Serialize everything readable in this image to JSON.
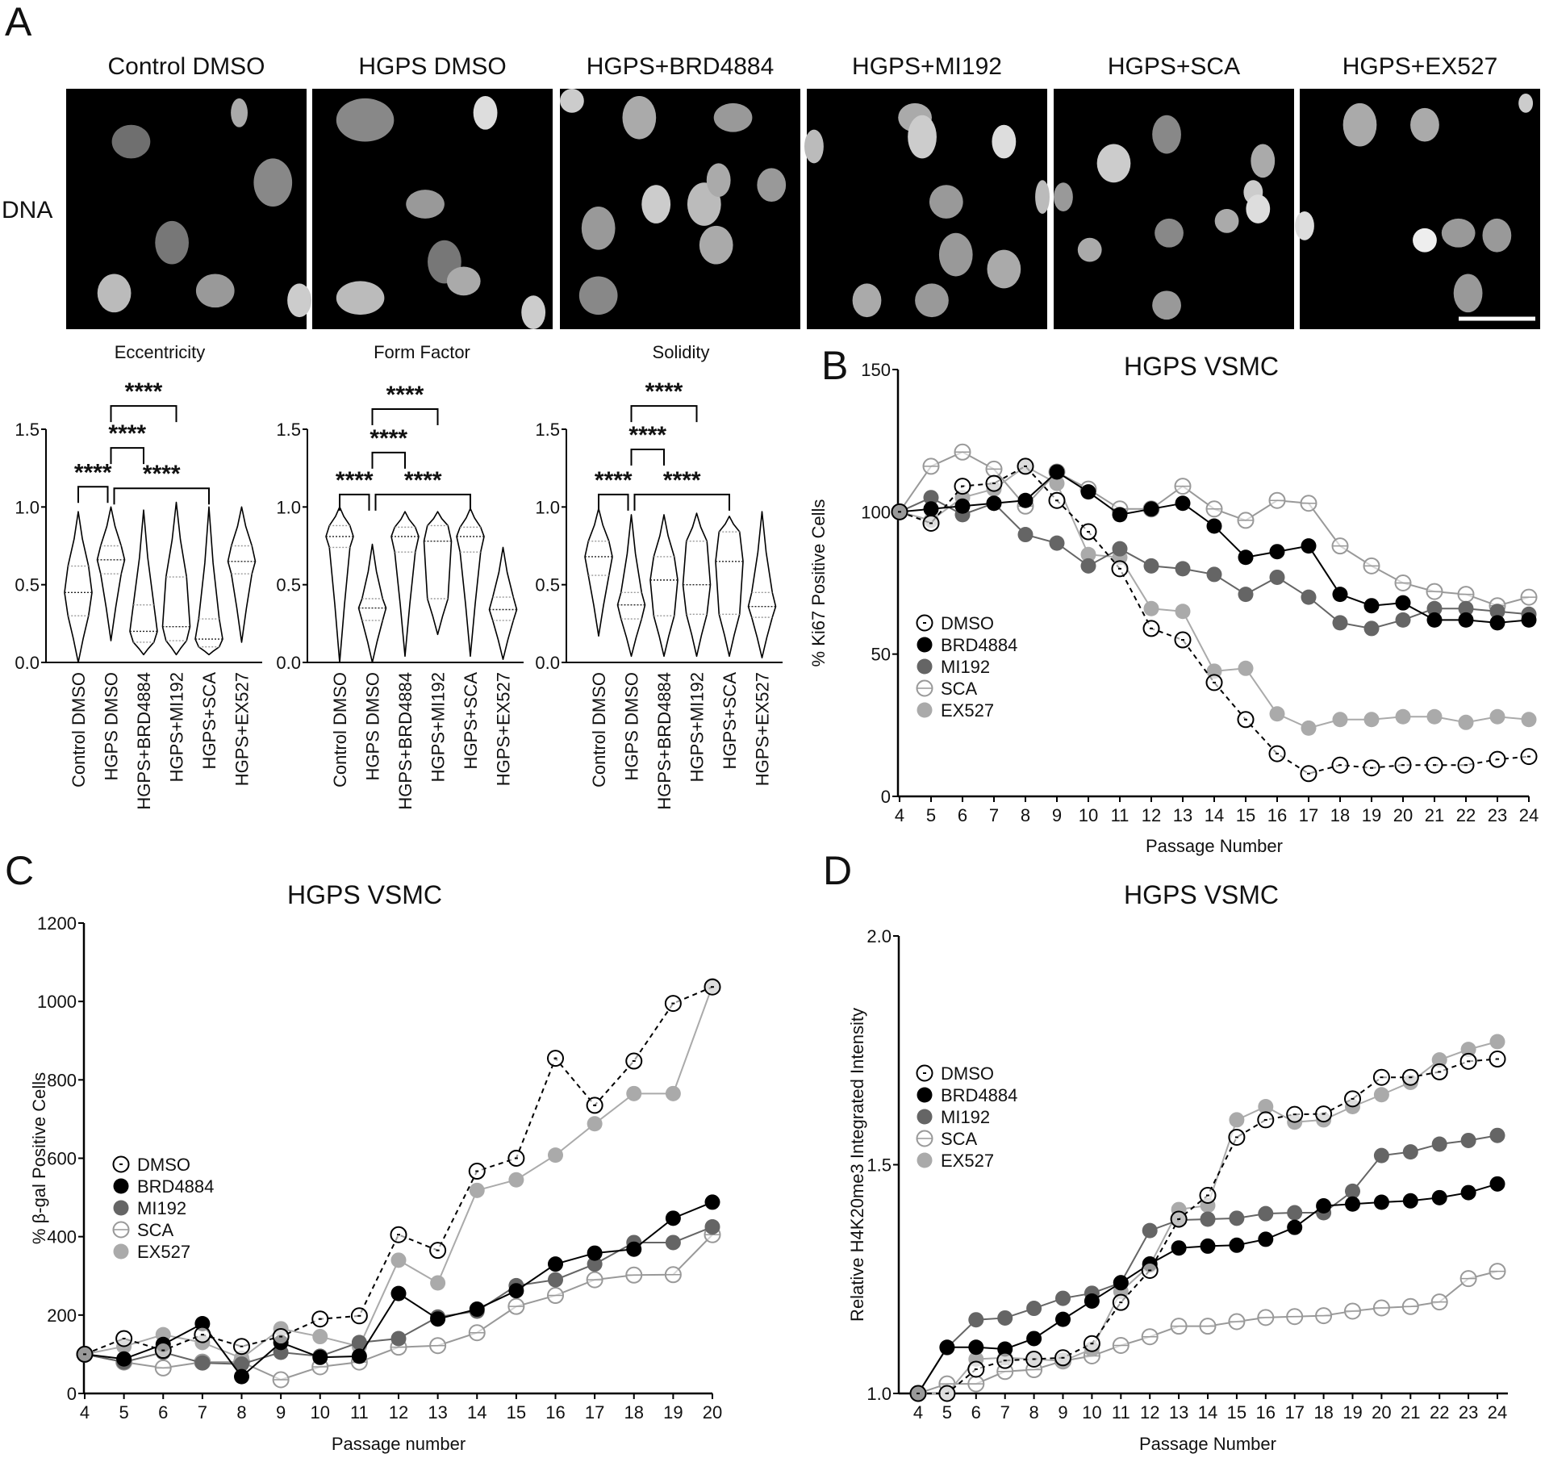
{
  "panel_labels": {
    "a": "A",
    "b": "B",
    "c": "C",
    "d": "D"
  },
  "panel_a": {
    "row_label": "DNA",
    "image_titles": [
      "Control DMSO",
      "HGPS DMSO",
      "HGPS+BRD4884",
      "HGPS+MI192",
      "HGPS+SCA",
      "HGPS+EX527"
    ],
    "scale_bar_color": "#ffffff"
  },
  "chart_data": [
    {
      "type": "violin",
      "title": "Eccentricity",
      "categories": [
        "Control DMSO",
        "HGPS DMSO",
        "HGPS+BRD4884",
        "HGPS+MI192",
        "HGPS+SCA",
        "HGPS+EX527"
      ],
      "ylim": [
        0,
        1.5
      ],
      "yticks": [
        "0.0",
        "0.5",
        "1.0",
        "1.5"
      ],
      "distributions": [
        {
          "median": 0.45,
          "q1": 0.3,
          "q3": 0.62,
          "min": 0.0,
          "max": 0.97
        },
        {
          "median": 0.66,
          "q1": 0.57,
          "q3": 0.75,
          "min": 0.14,
          "max": 1.0
        },
        {
          "median": 0.2,
          "q1": 0.13,
          "q3": 0.37,
          "min": 0.05,
          "max": 0.98
        },
        {
          "median": 0.23,
          "q1": 0.14,
          "q3": 0.55,
          "min": 0.05,
          "max": 1.03
        },
        {
          "median": 0.15,
          "q1": 0.1,
          "q3": 0.28,
          "min": 0.05,
          "max": 1.0
        },
        {
          "median": 0.65,
          "q1": 0.57,
          "q3": 0.75,
          "min": 0.13,
          "max": 1.0
        }
      ],
      "significance": [
        {
          "from": 0,
          "to": 1,
          "label": "****"
        },
        {
          "from": 1,
          "to": 4,
          "label": "****"
        },
        {
          "from": 1,
          "to": 2,
          "label": "****"
        },
        {
          "from": 1,
          "to": 3,
          "label": "****"
        }
      ]
    },
    {
      "type": "violin",
      "title": "Form Factor",
      "categories": [
        "Control DMSO",
        "HGPS DMSO",
        "HGPS+BRD4884",
        "HGPS+MI192",
        "HGPS+SCA",
        "HGPS+EX527"
      ],
      "ylim": [
        0,
        1.5
      ],
      "yticks": [
        "0.0",
        "0.5",
        "1.0",
        "1.5"
      ],
      "distributions": [
        {
          "median": 0.81,
          "q1": 0.74,
          "q3": 0.88,
          "min": 0.0,
          "max": 1.0
        },
        {
          "median": 0.35,
          "q1": 0.27,
          "q3": 0.41,
          "min": 0.0,
          "max": 0.76
        },
        {
          "median": 0.81,
          "q1": 0.71,
          "q3": 0.87,
          "min": 0.04,
          "max": 0.97
        },
        {
          "median": 0.78,
          "q1": 0.41,
          "q3": 0.88,
          "min": 0.18,
          "max": 0.97
        },
        {
          "median": 0.81,
          "q1": 0.71,
          "q3": 0.87,
          "min": 0.04,
          "max": 0.99
        },
        {
          "median": 0.34,
          "q1": 0.27,
          "q3": 0.42,
          "min": 0.02,
          "max": 0.74
        }
      ],
      "significance": [
        {
          "from": 0,
          "to": 1,
          "label": "****"
        },
        {
          "from": 1,
          "to": 4,
          "label": "****"
        },
        {
          "from": 1,
          "to": 2,
          "label": "****"
        },
        {
          "from": 1,
          "to": 3,
          "label": "****"
        }
      ]
    },
    {
      "type": "violin",
      "title": "Solidity",
      "categories": [
        "Control DMSO",
        "HGPS DMSO",
        "HGPS+BRD4884",
        "HGPS+MI192",
        "HGPS+SCA",
        "HGPS+EX527"
      ],
      "ylim": [
        0,
        1.5
      ],
      "yticks": [
        "0.0",
        "0.5",
        "1.0",
        "1.5"
      ],
      "distributions": [
        {
          "median": 0.68,
          "q1": 0.56,
          "q3": 0.78,
          "min": 0.17,
          "max": 0.99
        },
        {
          "median": 0.37,
          "q1": 0.28,
          "q3": 0.45,
          "min": 0.04,
          "max": 0.95
        },
        {
          "median": 0.53,
          "q1": 0.3,
          "q3": 0.68,
          "min": 0.04,
          "max": 0.95
        },
        {
          "median": 0.5,
          "q1": 0.31,
          "q3": 0.78,
          "min": 0.04,
          "max": 0.96
        },
        {
          "median": 0.65,
          "q1": 0.31,
          "q3": 0.84,
          "min": 0.04,
          "max": 0.94
        },
        {
          "median": 0.36,
          "q1": 0.29,
          "q3": 0.45,
          "min": 0.03,
          "max": 0.97
        }
      ],
      "significance": [
        {
          "from": 0,
          "to": 1,
          "label": "****"
        },
        {
          "from": 1,
          "to": 4,
          "label": "****"
        },
        {
          "from": 1,
          "to": 2,
          "label": "****"
        },
        {
          "from": 1,
          "to": 3,
          "label": "****"
        }
      ]
    },
    {
      "type": "line",
      "title": "HGPS VSMC",
      "xlabel": "Passage Number",
      "ylabel": "% Ki67 Positive Cells",
      "x": [
        4,
        5,
        6,
        7,
        8,
        9,
        10,
        11,
        12,
        13,
        14,
        15,
        16,
        17,
        18,
        19,
        20,
        21,
        22,
        23,
        24
      ],
      "ylim": [
        0,
        150
      ],
      "yticks": [
        "0",
        "50",
        "100",
        "150"
      ],
      "legend": "center-left",
      "series": [
        {
          "name": "DMSO",
          "values": [
            100,
            96,
            109,
            110,
            116,
            104,
            93,
            80,
            59,
            55,
            40,
            27,
            15,
            8,
            11,
            10,
            11,
            11,
            11,
            13,
            14
          ]
        },
        {
          "name": "BRD4884",
          "values": [
            100,
            101,
            102,
            103,
            104,
            114,
            107,
            99,
            101,
            103,
            95,
            84,
            86,
            88,
            71,
            67,
            68,
            62,
            62,
            61,
            62
          ]
        },
        {
          "name": "MI192",
          "values": [
            100,
            105,
            99,
            103,
            92,
            89,
            81,
            87,
            81,
            80,
            78,
            71,
            77,
            70,
            61,
            59,
            62,
            66,
            66,
            65,
            64
          ]
        },
        {
          "name": "SCA",
          "values": [
            100,
            116,
            121,
            115,
            102,
            114,
            108,
            101,
            101,
            109,
            101,
            97,
            104,
            103,
            88,
            81,
            75,
            72,
            71,
            67,
            70
          ]
        },
        {
          "name": "EX527",
          "values": [
            100,
            97,
            105,
            108,
            116,
            110,
            85,
            84,
            66,
            65,
            44,
            45,
            29,
            24,
            27,
            27,
            28,
            28,
            26,
            28,
            27
          ]
        }
      ]
    },
    {
      "type": "line",
      "title": "HGPS VSMC",
      "xlabel": "Passage number",
      "ylabel": "% β-gal Positive Cells",
      "x": [
        4,
        5,
        6,
        7,
        8,
        9,
        10,
        11,
        12,
        13,
        14,
        15,
        16,
        17,
        18,
        19,
        20
      ],
      "ylim": [
        0,
        1200
      ],
      "yticks": [
        "0",
        "200",
        "400",
        "600",
        "800",
        "1000",
        "1200"
      ],
      "legend": "center-left",
      "series": [
        {
          "name": "DMSO",
          "values": [
            100,
            140,
            110,
            150,
            120,
            145,
            190,
            198,
            405,
            365,
            567,
            600,
            855,
            735,
            848,
            995,
            1037
          ]
        },
        {
          "name": "BRD4884",
          "values": [
            100,
            88,
            125,
            178,
            43,
            130,
            92,
            95,
            255,
            190,
            215,
            262,
            330,
            358,
            368,
            447,
            488
          ]
        },
        {
          "name": "MI192",
          "values": [
            100,
            80,
            105,
            78,
            75,
            105,
            95,
            130,
            140,
            195,
            210,
            275,
            290,
            330,
            385,
            385,
            425
          ]
        },
        {
          "name": "SCA",
          "values": [
            100,
            80,
            65,
            80,
            80,
            35,
            68,
            80,
            118,
            122,
            155,
            222,
            250,
            290,
            302,
            303,
            405
          ]
        },
        {
          "name": "EX527",
          "values": [
            100,
            120,
            150,
            130,
            90,
            165,
            145,
            120,
            340,
            282,
            518,
            545,
            608,
            688,
            765,
            765,
            1040
          ]
        }
      ]
    },
    {
      "type": "line",
      "title": "HGPS VSMC",
      "xlabel": "Passage Number",
      "ylabel": "Relative H4K20me3 Integrated Intensity",
      "x": [
        4,
        5,
        6,
        7,
        8,
        9,
        10,
        11,
        12,
        13,
        14,
        15,
        16,
        17,
        18,
        19,
        20,
        21,
        22,
        23,
        24
      ],
      "ylim": [
        1.0,
        2.0
      ],
      "yticks": [
        "1.0",
        "1.5",
        "2.0"
      ],
      "legend": "center-left",
      "series": [
        {
          "name": "DMSO",
          "values": [
            1.0,
            1.0,
            1.053,
            1.072,
            1.075,
            1.078,
            1.109,
            1.199,
            1.269,
            1.381,
            1.433,
            1.56,
            1.598,
            1.61,
            1.611,
            1.644,
            1.691,
            1.691,
            1.703,
            1.726,
            1.731
          ]
        },
        {
          "name": "BRD4884",
          "values": [
            1.0,
            1.101,
            1.101,
            1.097,
            1.12,
            1.162,
            1.202,
            1.242,
            1.283,
            1.318,
            1.322,
            1.324,
            1.337,
            1.363,
            1.41,
            1.414,
            1.418,
            1.421,
            1.428,
            1.439,
            1.458
          ]
        },
        {
          "name": "MI192",
          "values": [
            1.0,
            1.1,
            1.161,
            1.165,
            1.186,
            1.208,
            1.219,
            1.242,
            1.356,
            1.379,
            1.381,
            1.383,
            1.393,
            1.395,
            1.395,
            1.442,
            1.52,
            1.528,
            1.545,
            1.553,
            1.564
          ]
        },
        {
          "name": "SCA",
          "values": [
            1.0,
            1.021,
            1.021,
            1.048,
            1.052,
            1.071,
            1.082,
            1.105,
            1.124,
            1.147,
            1.147,
            1.157,
            1.166,
            1.168,
            1.17,
            1.18,
            1.187,
            1.19,
            1.2,
            1.251,
            1.267
          ]
        },
        {
          "name": "EX527",
          "values": [
            1.0,
            1.0,
            1.075,
            1.078,
            1.075,
            1.071,
            1.097,
            1.223,
            1.28,
            1.402,
            1.411,
            1.598,
            1.627,
            1.593,
            1.598,
            1.627,
            1.653,
            1.68,
            1.729,
            1.752,
            1.769
          ]
        }
      ]
    }
  ],
  "series_styles": {
    "DMSO": {
      "marker": "open-circle-dot",
      "color": "#000000",
      "line": "dashed"
    },
    "BRD4884": {
      "marker": "filled-circle",
      "color": "#000000",
      "line": "solid"
    },
    "MI192": {
      "marker": "filled-circle",
      "color": "#656565",
      "line": "solid"
    },
    "SCA": {
      "marker": "open-circle-bar",
      "color": "#999999",
      "line": "solid"
    },
    "EX527": {
      "marker": "filled-circle",
      "color": "#aaaaaa",
      "line": "solid"
    }
  }
}
